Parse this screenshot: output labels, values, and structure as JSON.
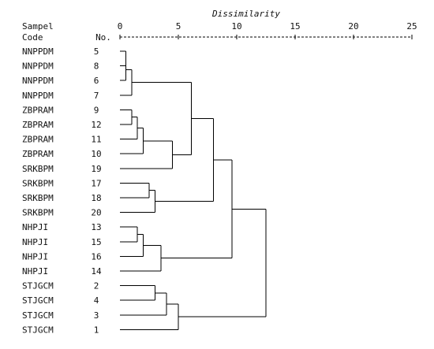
{
  "header": {
    "sample_label": "Sampel",
    "code_label": "Code",
    "no_label": "No.",
    "axis_title": "Dissimilarity"
  },
  "axis": {
    "ticks": [
      "0",
      "5",
      "10",
      "15",
      "20",
      "25"
    ],
    "tick_values": [
      0,
      5,
      10,
      15,
      20,
      25
    ],
    "range": [
      0,
      25
    ]
  },
  "leaves": [
    {
      "code": "NNPPDM",
      "no": "5"
    },
    {
      "code": "NNPPDM",
      "no": "8"
    },
    {
      "code": "NNPPDM",
      "no": "6"
    },
    {
      "code": "NNPPDM",
      "no": "7"
    },
    {
      "code": "ZBPRAM",
      "no": "9"
    },
    {
      "code": "ZBPRAM",
      "no": "12"
    },
    {
      "code": "ZBPRAM",
      "no": "11"
    },
    {
      "code": "ZBPRAM",
      "no": "10"
    },
    {
      "code": "SRKBPM",
      "no": "19"
    },
    {
      "code": "SRKBPM",
      "no": "17"
    },
    {
      "code": "SRKBPM",
      "no": "18"
    },
    {
      "code": "SRKBPM",
      "no": "20"
    },
    {
      "code": "NHPJI",
      "no": "13"
    },
    {
      "code": "NHPJI",
      "no": "15"
    },
    {
      "code": "NHPJI",
      "no": "16"
    },
    {
      "code": "NHPJI",
      "no": "14"
    },
    {
      "code": "STJGCM",
      "no": "2"
    },
    {
      "code": "STJGCM",
      "no": "4"
    },
    {
      "code": "STJGCM",
      "no": "3"
    },
    {
      "code": "STJGCM",
      "no": "1"
    }
  ],
  "merges": [
    {
      "id": "m1",
      "a": "L0",
      "b": "L1",
      "height": 0.5
    },
    {
      "id": "m2",
      "a": "m1",
      "b": "L2",
      "height": 0.5
    },
    {
      "id": "m3",
      "a": "m2",
      "b": "L3",
      "height": 1.0
    },
    {
      "id": "m4",
      "a": "L4",
      "b": "L5",
      "height": 1.0
    },
    {
      "id": "m5",
      "a": "m4",
      "b": "L6",
      "height": 1.5
    },
    {
      "id": "m6",
      "a": "m5",
      "b": "L7",
      "height": 2.0
    },
    {
      "id": "m7",
      "a": "m6",
      "b": "L8",
      "height": 4.5
    },
    {
      "id": "m8",
      "a": "m3",
      "b": "m7",
      "height": 6.1
    },
    {
      "id": "m9",
      "a": "L9",
      "b": "L10",
      "height": 2.5
    },
    {
      "id": "m10",
      "a": "m9",
      "b": "L11",
      "height": 3.0
    },
    {
      "id": "m11",
      "a": "m8",
      "b": "m10",
      "height": 8.0
    },
    {
      "id": "m12",
      "a": "L12",
      "b": "L13",
      "height": 1.5
    },
    {
      "id": "m13",
      "a": "m12",
      "b": "L14",
      "height": 2.0
    },
    {
      "id": "m14",
      "a": "m13",
      "b": "L15",
      "height": 3.5
    },
    {
      "id": "m15",
      "a": "m11",
      "b": "m14",
      "height": 9.6
    },
    {
      "id": "m16",
      "a": "L16",
      "b": "L17",
      "height": 3.0
    },
    {
      "id": "m17",
      "a": "m16",
      "b": "L18",
      "height": 4.0
    },
    {
      "id": "m18",
      "a": "m17",
      "b": "L19",
      "height": 5.0
    },
    {
      "id": "m19",
      "a": "m15",
      "b": "m18",
      "height": 12.5
    }
  ]
}
